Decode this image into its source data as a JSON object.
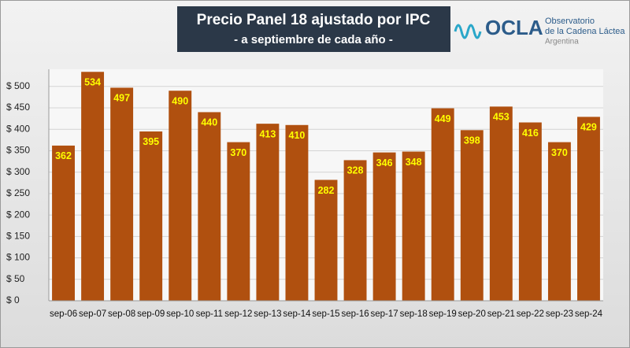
{
  "chart_data": {
    "type": "bar",
    "title": "Precio Panel 18 ajustado por IPC",
    "subtitle": "- a septiembre de cada año -",
    "logo": {
      "name": "OCLA",
      "line1": "Observatorio",
      "line2": "de la Cadena Láctea",
      "line3": "Argentina"
    },
    "categories": [
      "sep-06",
      "sep-07",
      "sep-08",
      "sep-09",
      "sep-10",
      "sep-11",
      "sep-12",
      "sep-13",
      "sep-14",
      "sep-15",
      "sep-16",
      "sep-17",
      "sep-18",
      "sep-19",
      "sep-20",
      "sep-21",
      "sep-22",
      "sep-23",
      "sep-24"
    ],
    "values": [
      362,
      534,
      497,
      395,
      490,
      440,
      370,
      413,
      410,
      282,
      328,
      346,
      348,
      449,
      398,
      453,
      416,
      370,
      429
    ],
    "color": "#b0500f",
    "label_color": "#ffff00",
    "ylim": [
      0,
      540
    ],
    "yticks": [
      {
        "value": 0,
        "label": "$ 0"
      },
      {
        "value": 50,
        "label": "$ 50"
      },
      {
        "value": 100,
        "label": "$ 100"
      },
      {
        "value": 150,
        "label": "$ 150"
      },
      {
        "value": 200,
        "label": "$ 200"
      },
      {
        "value": 250,
        "label": "$ 250"
      },
      {
        "value": 300,
        "label": "$ 300"
      },
      {
        "value": 350,
        "label": "$ 350"
      },
      {
        "value": 400,
        "label": "$ 400"
      },
      {
        "value": 450,
        "label": "$ 450"
      },
      {
        "value": 500,
        "label": "$ 500"
      }
    ],
    "grid": true
  }
}
